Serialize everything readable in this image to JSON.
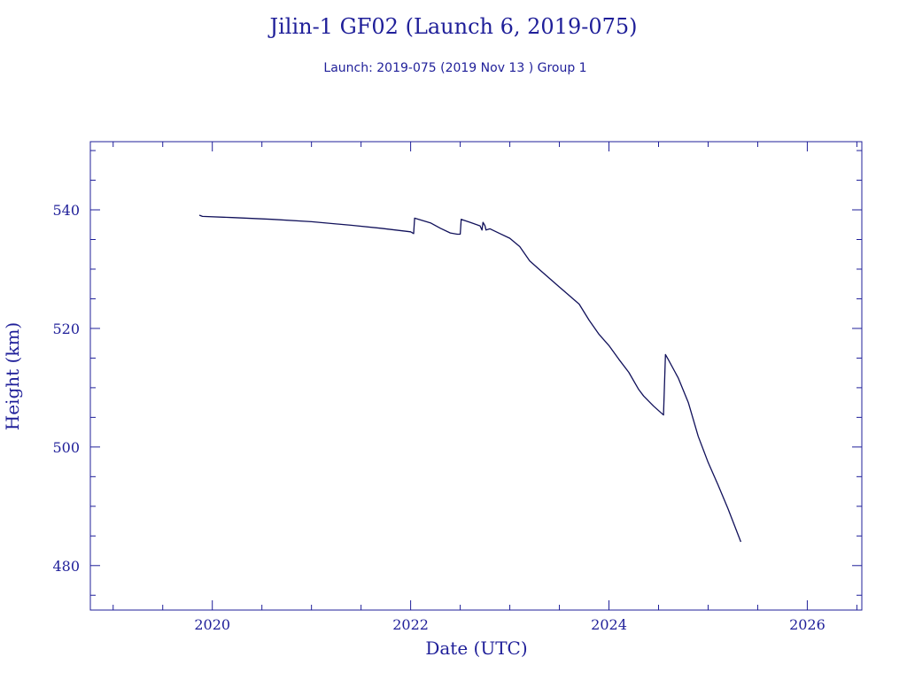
{
  "colors": {
    "ink": "#1f1f99",
    "line": "#10105a",
    "background": "#ffffff"
  },
  "chart_data": {
    "type": "line",
    "title": "Jilin-1 GF02 (Launch 6, 2019-075)",
    "subtitle": "Launch: 2019-075  (2019 Nov 13 )  Group 1",
    "xlabel": "Date (UTC)",
    "ylabel": "Height (km)",
    "xlim": [
      2018.77,
      2026.55
    ],
    "ylim": [
      472.5,
      551.5
    ],
    "x_ticks": [
      2020,
      2022,
      2024,
      2026
    ],
    "x_tick_labels": [
      "2020",
      "2022",
      "2024",
      "2026"
    ],
    "y_ticks": [
      480,
      500,
      520,
      540
    ],
    "y_tick_labels": [
      "480",
      "500",
      "520",
      "540"
    ],
    "x_minor_step": 0.5,
    "y_minor_step": 5,
    "grid": false,
    "legend": "none",
    "series": [
      {
        "x": [
          2019.87,
          2019.9,
          2020.2,
          2020.6,
          2021.0,
          2021.4,
          2021.7,
          2022.0,
          2022.03,
          2022.04,
          2022.2,
          2022.3,
          2022.4,
          2022.47,
          2022.5,
          2022.51,
          2022.6,
          2022.7,
          2022.72,
          2022.73,
          2022.75,
          2022.76,
          2022.8,
          2022.9,
          2023.0,
          2023.1,
          2023.2,
          2023.3,
          2023.5,
          2023.7,
          2023.8,
          2023.9,
          2024.0,
          2024.1,
          2024.2,
          2024.3,
          2024.35,
          2024.45,
          2024.55,
          2024.57,
          2024.6,
          2024.7,
          2024.8,
          2024.9,
          2025.0,
          2025.1,
          2025.2,
          2025.33
        ],
        "y": [
          539.1,
          538.9,
          538.7,
          538.4,
          538.0,
          537.4,
          536.9,
          536.3,
          536.0,
          538.6,
          537.8,
          536.9,
          536.1,
          535.9,
          535.9,
          538.4,
          537.9,
          537.3,
          536.6,
          537.9,
          537.3,
          536.6,
          536.8,
          536.0,
          535.2,
          533.8,
          531.4,
          529.9,
          527.0,
          524.1,
          521.4,
          519.0,
          517.1,
          514.8,
          512.6,
          509.7,
          508.6,
          506.9,
          505.4,
          515.6,
          514.7,
          511.6,
          507.5,
          501.8,
          497.4,
          493.6,
          489.6,
          484.0
        ]
      }
    ]
  }
}
